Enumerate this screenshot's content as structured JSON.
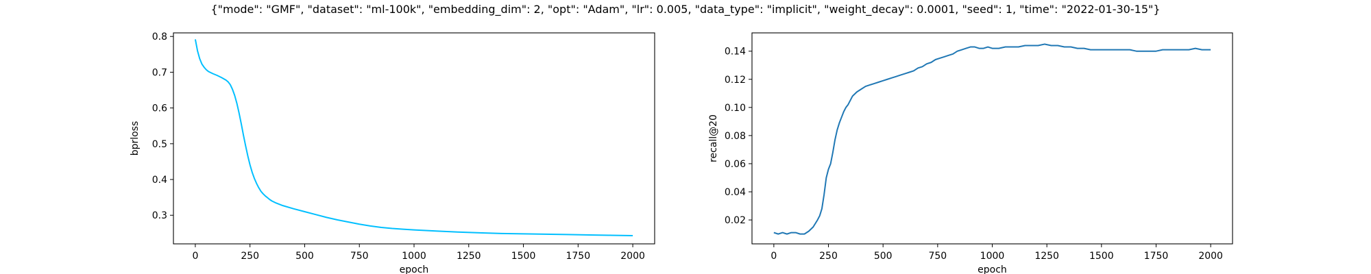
{
  "figure_title": "{\"mode\": \"GMF\", \"dataset\": \"ml-100k\", \"embedding_dim\": 2, \"opt\": \"Adam\", \"lr\": 0.005, \"data_type\": \"implicit\", \"weight_decay\": 0.0001, \"seed\": 1, \"time\": \"2022-01-30-15\"}",
  "chart_data": [
    {
      "type": "line",
      "xlabel": "epoch",
      "ylabel": "bprloss",
      "xlim": [
        -100,
        2100
      ],
      "ylim": [
        0.22,
        0.81
      ],
      "x_ticks": [
        0,
        250,
        500,
        750,
        1000,
        1250,
        1500,
        1750,
        2000
      ],
      "y_ticks": [
        0.3,
        0.4,
        0.5,
        0.6,
        0.7,
        0.8
      ],
      "grid": false,
      "color": "#00bfff",
      "series": [
        {
          "x": [
            0,
            10,
            20,
            30,
            40,
            50,
            60,
            80,
            100,
            120,
            140,
            150,
            160,
            170,
            180,
            190,
            200,
            210,
            220,
            230,
            240,
            250,
            260,
            270,
            280,
            290,
            300,
            310,
            320,
            330,
            340,
            350,
            370,
            400,
            450,
            500,
            550,
            600,
            650,
            700,
            750,
            800,
            850,
            900,
            950,
            1000,
            1100,
            1200,
            1300,
            1400,
            1500,
            1600,
            1700,
            1800,
            1900,
            2000
          ],
          "y": [
            0.792,
            0.76,
            0.738,
            0.723,
            0.714,
            0.707,
            0.702,
            0.696,
            0.691,
            0.685,
            0.678,
            0.673,
            0.665,
            0.652,
            0.635,
            0.613,
            0.586,
            0.556,
            0.524,
            0.494,
            0.466,
            0.441,
            0.42,
            0.403,
            0.389,
            0.377,
            0.367,
            0.36,
            0.354,
            0.349,
            0.344,
            0.34,
            0.334,
            0.327,
            0.318,
            0.31,
            0.302,
            0.294,
            0.287,
            0.281,
            0.275,
            0.27,
            0.266,
            0.263,
            0.261,
            0.259,
            0.256,
            0.253,
            0.251,
            0.249,
            0.248,
            0.247,
            0.246,
            0.245,
            0.244,
            0.243
          ]
        }
      ]
    },
    {
      "type": "line",
      "xlabel": "epoch",
      "ylabel": "recall@20",
      "xlim": [
        -100,
        2100
      ],
      "ylim": [
        0.003,
        0.153
      ],
      "x_ticks": [
        0,
        250,
        500,
        750,
        1000,
        1250,
        1500,
        1750,
        2000
      ],
      "y_ticks": [
        0.02,
        0.04,
        0.06,
        0.08,
        0.1,
        0.12,
        0.14
      ],
      "grid": false,
      "color": "#1f77b4",
      "series": [
        {
          "x": [
            0,
            20,
            40,
            60,
            80,
            100,
            120,
            140,
            160,
            180,
            200,
            210,
            220,
            230,
            240,
            250,
            260,
            270,
            280,
            290,
            300,
            310,
            320,
            330,
            340,
            350,
            360,
            380,
            400,
            420,
            440,
            460,
            480,
            500,
            520,
            540,
            560,
            580,
            600,
            620,
            640,
            660,
            680,
            700,
            720,
            740,
            760,
            780,
            800,
            820,
            840,
            860,
            880,
            900,
            920,
            940,
            960,
            980,
            1000,
            1030,
            1060,
            1090,
            1120,
            1150,
            1180,
            1210,
            1240,
            1270,
            1300,
            1330,
            1360,
            1390,
            1420,
            1450,
            1480,
            1510,
            1540,
            1570,
            1600,
            1630,
            1660,
            1690,
            1720,
            1750,
            1780,
            1810,
            1840,
            1870,
            1900,
            1930,
            1960,
            2000
          ],
          "y": [
            0.011,
            0.01,
            0.011,
            0.01,
            0.011,
            0.011,
            0.01,
            0.01,
            0.012,
            0.015,
            0.02,
            0.023,
            0.028,
            0.038,
            0.05,
            0.056,
            0.06,
            0.068,
            0.077,
            0.084,
            0.089,
            0.093,
            0.097,
            0.1,
            0.102,
            0.105,
            0.108,
            0.111,
            0.113,
            0.115,
            0.116,
            0.117,
            0.118,
            0.119,
            0.12,
            0.121,
            0.122,
            0.123,
            0.124,
            0.125,
            0.126,
            0.128,
            0.129,
            0.131,
            0.132,
            0.134,
            0.135,
            0.136,
            0.137,
            0.138,
            0.14,
            0.141,
            0.142,
            0.143,
            0.143,
            0.142,
            0.142,
            0.143,
            0.142,
            0.142,
            0.143,
            0.143,
            0.143,
            0.144,
            0.144,
            0.144,
            0.145,
            0.144,
            0.144,
            0.143,
            0.143,
            0.142,
            0.142,
            0.141,
            0.141,
            0.141,
            0.141,
            0.141,
            0.141,
            0.141,
            0.14,
            0.14,
            0.14,
            0.14,
            0.141,
            0.141,
            0.141,
            0.141,
            0.141,
            0.142,
            0.141,
            0.141
          ]
        }
      ]
    }
  ]
}
